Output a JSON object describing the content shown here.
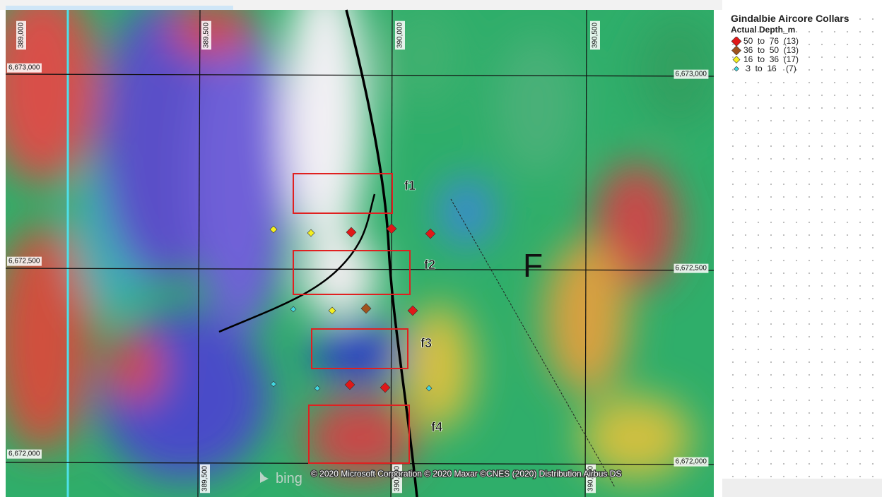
{
  "map": {
    "grid_labels": {
      "top": [
        "389,000",
        "389,500",
        "390,000",
        "390,500"
      ],
      "bottom": [
        "389,500",
        "390,000",
        "390,500"
      ],
      "left": [
        "6,673,000",
        "6,672,500",
        "6,672,000"
      ],
      "right": [
        "6,673,000",
        "6,672,500",
        "6,672,000"
      ]
    },
    "box_labels": [
      "f1",
      "f2",
      "f3",
      "f4"
    ],
    "fault_label": "F",
    "logo": "bing",
    "attribution": "© 2020 Microsoft Corporation © 2020 Maxar ©CNES (2020) Distribution Airbus DS"
  },
  "legend": {
    "title": "Gindalbie Aircore Collars",
    "subtitle": "Actual Depth_m",
    "items": [
      "50  to  76  (13)",
      "36  to  50  (13)",
      "16  to  36  (17)",
      " 3  to  16    (7)"
    ]
  }
}
